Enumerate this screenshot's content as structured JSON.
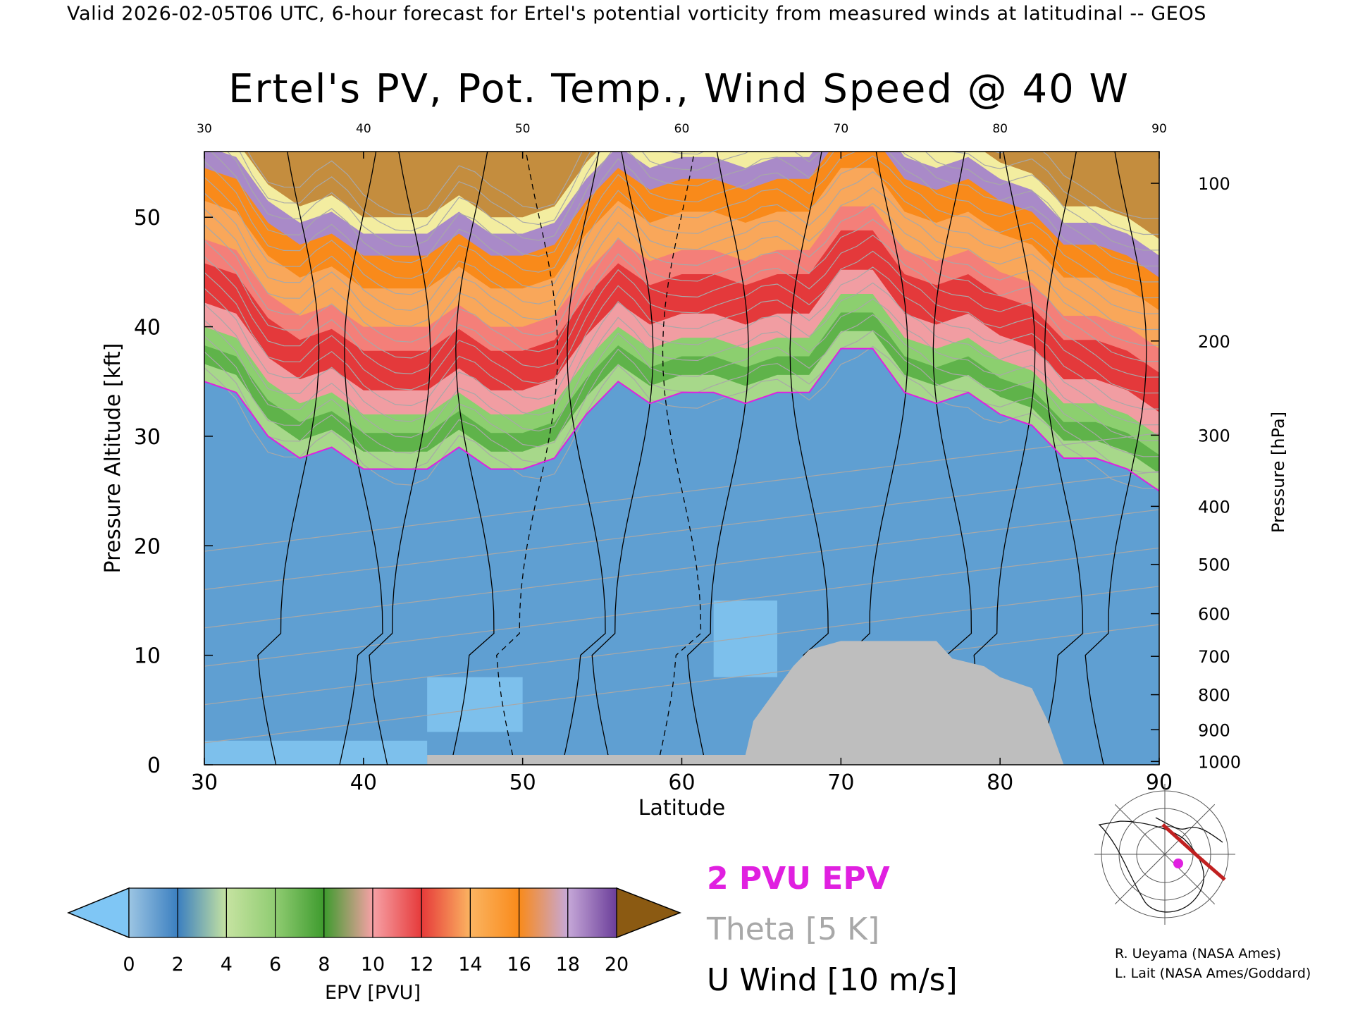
{
  "header": {
    "valid_line": "Valid 2026-02-05T06 UTC, 6-hour forecast for Ertel's potential vorticity from measured winds at latitudinal -- GEOS"
  },
  "chart_data": {
    "type": "heatmap",
    "title": "Ertel's PV, Pot. Temp., Wind Speed @ 40 W",
    "xlabel": "Latitude",
    "ylabel": "Pressure Altitude [kft]",
    "y2label": "Pressure [hPa]",
    "xlim": [
      30,
      90
    ],
    "ylim": [
      0,
      56
    ],
    "x_ticks": [
      "30",
      "40",
      "50",
      "60",
      "70",
      "80",
      "90"
    ],
    "y_ticks": [
      "0",
      "10",
      "20",
      "30",
      "40",
      "50"
    ],
    "pressure_ticks": [
      {
        "label": "100",
        "kft": 53.1
      },
      {
        "label": "200",
        "kft": 38.7
      },
      {
        "label": "300",
        "kft": 30.1
      },
      {
        "label": "400",
        "kft": 23.6
      },
      {
        "label": "500",
        "kft": 18.3
      },
      {
        "label": "600",
        "kft": 13.8
      },
      {
        "label": "700",
        "kft": 9.9
      },
      {
        "label": "800",
        "kft": 6.4
      },
      {
        "label": "900",
        "kft": 3.2
      },
      {
        "label": "1000",
        "kft": 0.3
      }
    ],
    "terrain_color": "#bebebe",
    "two_pvu_color": "#e020e0",
    "theta_color": "#a8a8a8",
    "wind_color": "#000000",
    "epv_colorbar": {
      "label": "EPV [PVU]",
      "tick_labels": [
        "0",
        "2",
        "4",
        "6",
        "8",
        "10",
        "12",
        "14",
        "16",
        "18",
        "20"
      ],
      "under_color": "#7fc6f5",
      "over_color": "#8b5a12",
      "colors": [
        "#9cc5e3",
        "#3b7fc0",
        "#c6e3a1",
        "#90cc72",
        "#3e9b2e",
        "#f6a1a6",
        "#e63a3a",
        "#fbb461",
        "#f98a1a",
        "#c6a8d8",
        "#6b3e9a",
        "#f6f0a0",
        "#c89a4d"
      ]
    },
    "legend": {
      "pvu": "2 PVU EPV",
      "theta": "Theta [5 K]",
      "wind": "U Wind [10 m/s]"
    },
    "tropopause_2pvu_kft": {
      "lat": [
        30,
        32,
        34,
        36,
        38,
        40,
        42,
        44,
        46,
        48,
        50,
        52,
        54,
        56,
        58,
        60,
        62,
        64,
        66,
        68,
        70,
        72,
        74,
        76,
        78,
        80,
        82,
        84,
        86,
        88,
        90
      ],
      "value": [
        35,
        34,
        30,
        28,
        29,
        27,
        27,
        27,
        29,
        27,
        27,
        28,
        32,
        35,
        33,
        34,
        34,
        33,
        34,
        34,
        38,
        38,
        34,
        33,
        34,
        32,
        31,
        28,
        28,
        27,
        25
      ]
    },
    "inset_map": {
      "marker_color": "#e020e0",
      "track_color": "#c02020"
    }
  },
  "credits": {
    "line1": "R. Ueyama (NASA Ames)",
    "line2": "L. Lait (NASA Ames/Goddard)"
  }
}
